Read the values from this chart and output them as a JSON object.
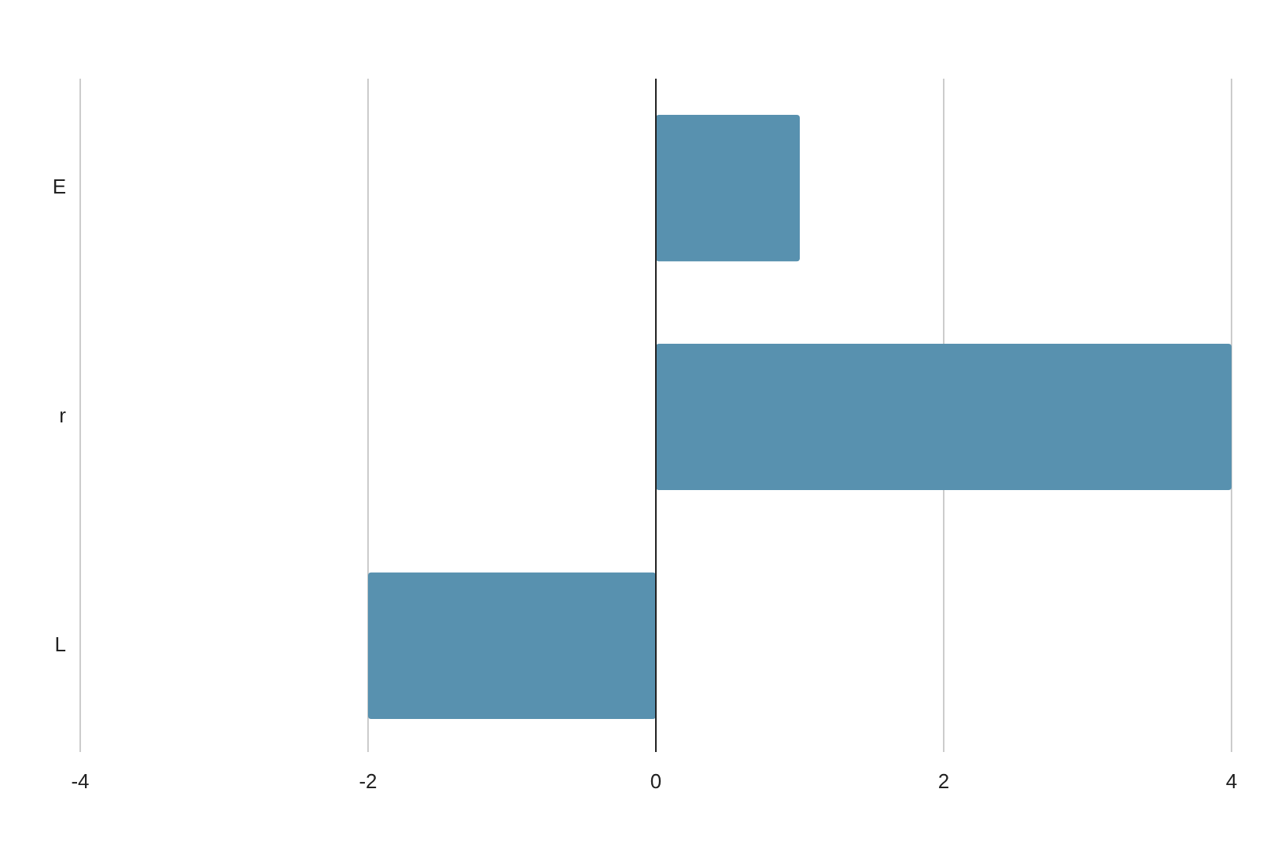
{
  "chart_data": {
    "type": "bar",
    "orientation": "horizontal",
    "categories": [
      "E",
      "r",
      "L"
    ],
    "values": [
      1,
      4,
      -2
    ],
    "color": "#5891af",
    "xlim": [
      -4,
      4
    ],
    "xticks": [
      -4,
      -2,
      0,
      2,
      4
    ],
    "grid": "x"
  }
}
